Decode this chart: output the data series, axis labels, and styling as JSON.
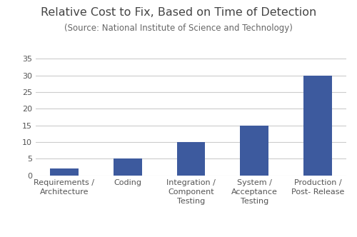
{
  "title": "Relative Cost to Fix, Based on Time of Detection",
  "subtitle": "(Source: National Institute of Science and Technology)",
  "categories": [
    "Requirements /\nArchitecture",
    "Coding",
    "Integration /\nComponent\nTesting",
    "System /\nAcceptance\nTesting",
    "Production /\nPost- Release"
  ],
  "values": [
    2,
    5,
    10,
    15,
    30
  ],
  "bar_color": "#3d5a9e",
  "ylim": [
    0,
    37
  ],
  "yticks": [
    0,
    5,
    10,
    15,
    20,
    25,
    30,
    35
  ],
  "background_color": "#ffffff",
  "title_fontsize": 11.5,
  "subtitle_fontsize": 8.5,
  "tick_label_fontsize": 8,
  "grid_color": "#cccccc",
  "bar_width": 0.45
}
